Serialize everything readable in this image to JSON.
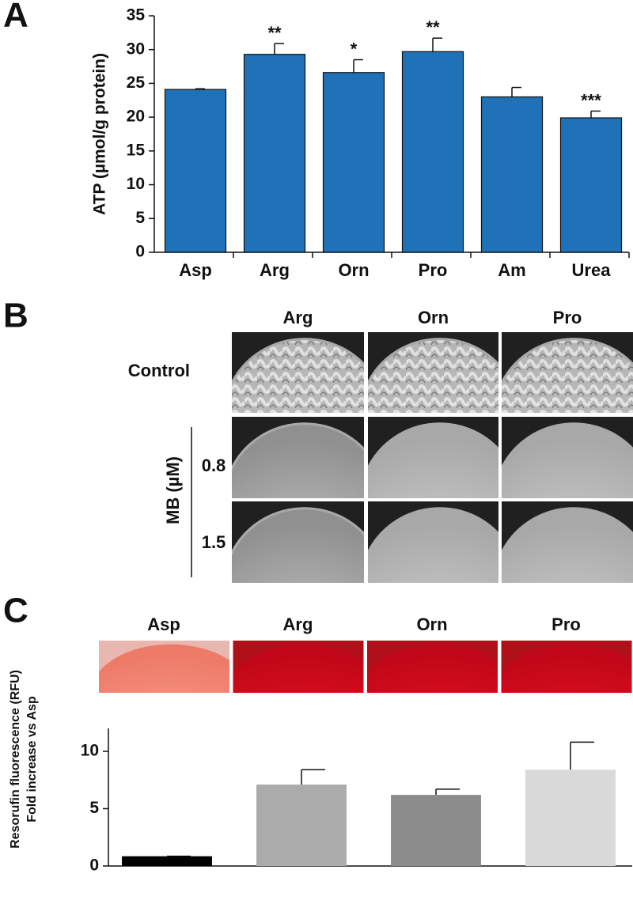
{
  "panel_labels": [
    "A",
    "B",
    "C"
  ],
  "panel_b": {
    "columns": [
      "Arg",
      "Orn",
      "Pro"
    ],
    "rows": [
      "Control",
      "0.8",
      "1.5"
    ],
    "row_group_label": "MB (µM)"
  },
  "chart_data": [
    {
      "type": "bar",
      "ylabel": "ATP (µmol/g protein)",
      "categories": [
        "Asp",
        "Arg",
        "Orn",
        "Pro",
        "Am",
        "Urea"
      ],
      "values": [
        24.1,
        29.3,
        26.6,
        29.7,
        23.0,
        19.9
      ],
      "errors": [
        0.1,
        1.6,
        1.9,
        2.0,
        1.4,
        1.0
      ],
      "annotations": [
        null,
        "**",
        "*",
        "**",
        null,
        "***"
      ],
      "color": "#1f72b8",
      "ylim": [
        0,
        35
      ],
      "yticks": [
        0,
        5,
        10,
        15,
        20,
        25,
        30,
        35
      ]
    },
    {
      "type": "bar",
      "ylabel": [
        "Resorufin fluorescence (RFU)",
        "Fold increase vs Asp"
      ],
      "categories": [
        "Asp",
        "Arg",
        "Orn",
        "Pro"
      ],
      "values": [
        0.85,
        7.1,
        6.2,
        8.4
      ],
      "errors": [
        0,
        1.3,
        0.5,
        2.4
      ],
      "colors": [
        "#000000",
        "#ababab",
        "#8c8c8c",
        "#d9d9d9"
      ],
      "ylim": [
        0,
        12
      ],
      "yticks": [
        0,
        5,
        10
      ]
    }
  ]
}
